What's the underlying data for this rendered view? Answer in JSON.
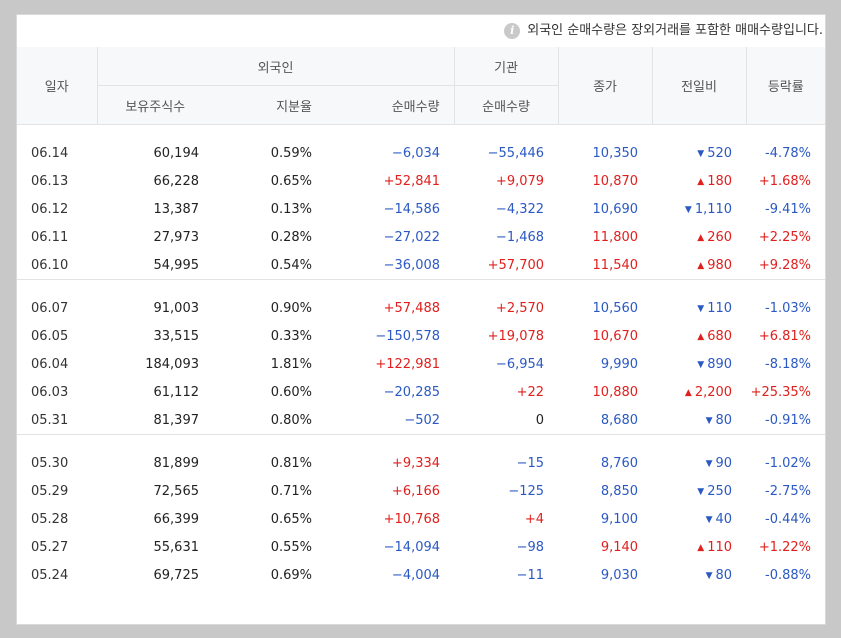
{
  "notice": "외국인 순매수량은 장외거래를 포함한 매매수량입니다.",
  "headers": {
    "date": "일자",
    "foreign": "외국인",
    "institution": "기관",
    "holdings": "보유주식수",
    "share_ratio": "지분율",
    "net_buy": "순매수량",
    "inst_net_buy": "순매수량",
    "close": "종가",
    "change": "전일비",
    "rate": "등락률"
  },
  "colors": {
    "up": "#e0201e",
    "down": "#2b59c3"
  },
  "groups": [
    [
      {
        "date": "06.14",
        "holdings": "60,194",
        "ratio": "0.59%",
        "foreign": "−6,034",
        "inst": "−55,446",
        "close": "10,350",
        "dir": "down",
        "change": "520",
        "rate": "-4.78%"
      },
      {
        "date": "06.13",
        "holdings": "66,228",
        "ratio": "0.65%",
        "foreign": "+52,841",
        "inst": "+9,079",
        "close": "10,870",
        "dir": "up",
        "change": "180",
        "rate": "+1.68%"
      },
      {
        "date": "06.12",
        "holdings": "13,387",
        "ratio": "0.13%",
        "foreign": "−14,586",
        "inst": "−4,322",
        "close": "10,690",
        "dir": "down",
        "change": "1,110",
        "rate": "-9.41%"
      },
      {
        "date": "06.11",
        "holdings": "27,973",
        "ratio": "0.28%",
        "foreign": "−27,022",
        "inst": "−1,468",
        "close": "11,800",
        "dir": "up",
        "change": "260",
        "rate": "+2.25%"
      },
      {
        "date": "06.10",
        "holdings": "54,995",
        "ratio": "0.54%",
        "foreign": "−36,008",
        "inst": "+57,700",
        "close": "11,540",
        "dir": "up",
        "change": "980",
        "rate": "+9.28%"
      }
    ],
    [
      {
        "date": "06.07",
        "holdings": "91,003",
        "ratio": "0.90%",
        "foreign": "+57,488",
        "inst": "+2,570",
        "close": "10,560",
        "dir": "down",
        "change": "110",
        "rate": "-1.03%"
      },
      {
        "date": "06.05",
        "holdings": "33,515",
        "ratio": "0.33%",
        "foreign": "−150,578",
        "inst": "+19,078",
        "close": "10,670",
        "dir": "up",
        "change": "680",
        "rate": "+6.81%"
      },
      {
        "date": "06.04",
        "holdings": "184,093",
        "ratio": "1.81%",
        "foreign": "+122,981",
        "inst": "−6,954",
        "close": "9,990",
        "dir": "down",
        "change": "890",
        "rate": "-8.18%"
      },
      {
        "date": "06.03",
        "holdings": "61,112",
        "ratio": "0.60%",
        "foreign": "−20,285",
        "inst": "+22",
        "close": "10,880",
        "dir": "up",
        "change": "2,200",
        "rate": "+25.35%"
      },
      {
        "date": "05.31",
        "holdings": "81,397",
        "ratio": "0.80%",
        "foreign": "−502",
        "inst": "0",
        "close": "8,680",
        "dir": "down",
        "change": "80",
        "rate": "-0.91%"
      }
    ],
    [
      {
        "date": "05.30",
        "holdings": "81,899",
        "ratio": "0.81%",
        "foreign": "+9,334",
        "inst": "−15",
        "close": "8,760",
        "dir": "down",
        "change": "90",
        "rate": "-1.02%"
      },
      {
        "date": "05.29",
        "holdings": "72,565",
        "ratio": "0.71%",
        "foreign": "+6,166",
        "inst": "−125",
        "close": "8,850",
        "dir": "down",
        "change": "250",
        "rate": "-2.75%"
      },
      {
        "date": "05.28",
        "holdings": "66,399",
        "ratio": "0.65%",
        "foreign": "+10,768",
        "inst": "+4",
        "close": "9,100",
        "dir": "down",
        "change": "40",
        "rate": "-0.44%"
      },
      {
        "date": "05.27",
        "holdings": "55,631",
        "ratio": "0.55%",
        "foreign": "−14,094",
        "inst": "−98",
        "close": "9,140",
        "dir": "up",
        "change": "110",
        "rate": "+1.22%"
      },
      {
        "date": "05.24",
        "holdings": "69,725",
        "ratio": "0.69%",
        "foreign": "−4,004",
        "inst": "−11",
        "close": "9,030",
        "dir": "down",
        "change": "80",
        "rate": "-0.88%"
      }
    ]
  ]
}
